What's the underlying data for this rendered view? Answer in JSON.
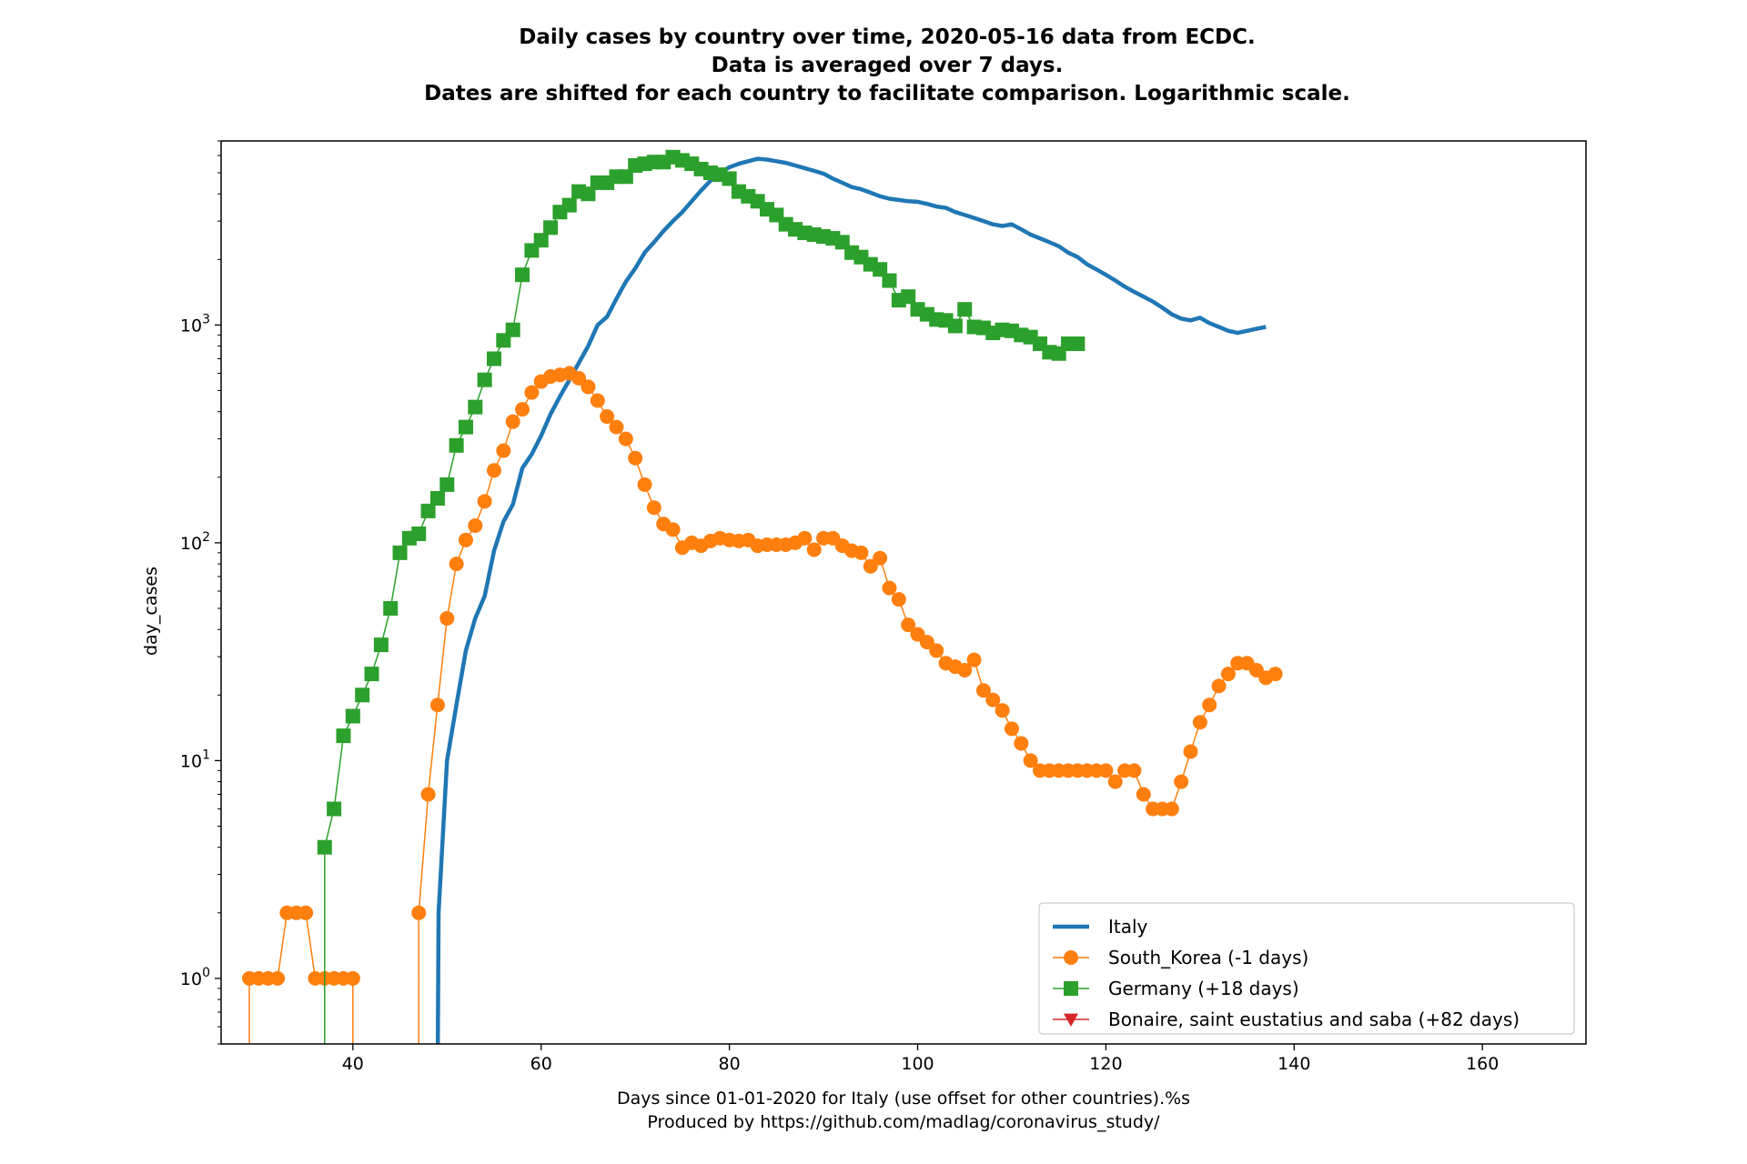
{
  "chart_data": {
    "type": "line",
    "title_lines": [
      "Daily cases by country over time, 2020-05-16 data from ECDC.",
      "Data is averaged over 7 days.",
      "Dates are shifted for each country to facilitate comparison. Logarithmic scale."
    ],
    "xlabel_lines": [
      "Days since 01-01-2020 for Italy (use offset for other countries).%s",
      "Produced by https://github.com/madlag/coronavirus_study/"
    ],
    "ylabel": "day_cases",
    "x_scale": "linear",
    "y_scale": "log",
    "xlim": [
      26,
      171
    ],
    "ylim": [
      0.5,
      7000
    ],
    "x_ticks": [
      40,
      60,
      80,
      100,
      120,
      140,
      160
    ],
    "y_ticks": [
      {
        "value": 1,
        "base": "10",
        "exp": "0"
      },
      {
        "value": 10,
        "base": "10",
        "exp": "1"
      },
      {
        "value": 100,
        "base": "10",
        "exp": "2"
      },
      {
        "value": 1000,
        "base": "10",
        "exp": "3"
      }
    ],
    "grid": false,
    "legend_position": "lower-right",
    "series": [
      {
        "name": "Italy",
        "color": "#1f77b4",
        "marker": "none",
        "line_width": 4.5,
        "points": [
          [
            49,
            0.3
          ],
          [
            49.1,
            2
          ],
          [
            50,
            10
          ],
          [
            51,
            18
          ],
          [
            52,
            32
          ],
          [
            53,
            45
          ],
          [
            54,
            57
          ],
          [
            55,
            92
          ],
          [
            56,
            125
          ],
          [
            57,
            150
          ],
          [
            58,
            220
          ],
          [
            59,
            255
          ],
          [
            60,
            310
          ],
          [
            61,
            390
          ],
          [
            62,
            470
          ],
          [
            63,
            560
          ],
          [
            64,
            670
          ],
          [
            65,
            800
          ],
          [
            66,
            1000
          ],
          [
            67,
            1090
          ],
          [
            68,
            1320
          ],
          [
            69,
            1580
          ],
          [
            70,
            1820
          ],
          [
            71,
            2150
          ],
          [
            72,
            2400
          ],
          [
            73,
            2700
          ],
          [
            74,
            3000
          ],
          [
            75,
            3300
          ],
          [
            76,
            3700
          ],
          [
            77,
            4150
          ],
          [
            78,
            4600
          ],
          [
            79,
            5000
          ],
          [
            80,
            5300
          ],
          [
            81,
            5500
          ],
          [
            82,
            5650
          ],
          [
            83,
            5800
          ],
          [
            84,
            5750
          ],
          [
            85,
            5650
          ],
          [
            86,
            5550
          ],
          [
            87,
            5400
          ],
          [
            88,
            5250
          ],
          [
            89,
            5100
          ],
          [
            90,
            4950
          ],
          [
            91,
            4700
          ],
          [
            92,
            4500
          ],
          [
            93,
            4300
          ],
          [
            94,
            4200
          ],
          [
            95,
            4050
          ],
          [
            96,
            3900
          ],
          [
            97,
            3800
          ],
          [
            98,
            3750
          ],
          [
            99,
            3700
          ],
          [
            100,
            3680
          ],
          [
            101,
            3600
          ],
          [
            102,
            3500
          ],
          [
            103,
            3450
          ],
          [
            104,
            3300
          ],
          [
            105,
            3200
          ],
          [
            106,
            3100
          ],
          [
            107,
            3000
          ],
          [
            108,
            2900
          ],
          [
            109,
            2850
          ],
          [
            110,
            2900
          ],
          [
            111,
            2750
          ],
          [
            112,
            2600
          ],
          [
            113,
            2500
          ],
          [
            114,
            2400
          ],
          [
            115,
            2300
          ],
          [
            116,
            2150
          ],
          [
            117,
            2050
          ],
          [
            118,
            1900
          ],
          [
            119,
            1800
          ],
          [
            120,
            1700
          ],
          [
            121,
            1600
          ],
          [
            122,
            1500
          ],
          [
            123,
            1420
          ],
          [
            124,
            1350
          ],
          [
            125,
            1280
          ],
          [
            126,
            1200
          ],
          [
            127,
            1120
          ],
          [
            128,
            1070
          ],
          [
            129,
            1050
          ],
          [
            130,
            1080
          ],
          [
            131,
            1020
          ],
          [
            132,
            980
          ],
          [
            133,
            940
          ],
          [
            134,
            920
          ],
          [
            135,
            940
          ],
          [
            136,
            960
          ],
          [
            137,
            980
          ]
        ]
      },
      {
        "name": "South_Korea (-1 days)",
        "color": "#ff7f0e",
        "marker": "circle",
        "line_width": 1.5,
        "points": [
          [
            29,
            0.4
          ],
          [
            29,
            1
          ],
          [
            30,
            1
          ],
          [
            31,
            1
          ],
          [
            32,
            1
          ],
          [
            33,
            2
          ],
          [
            34,
            2
          ],
          [
            35,
            2
          ],
          [
            36,
            1
          ],
          [
            37,
            1
          ],
          [
            38,
            1
          ],
          [
            39,
            1
          ],
          [
            40,
            1
          ],
          [
            40,
            0.4
          ],
          [
            47,
            0.4
          ],
          [
            47,
            2
          ],
          [
            48,
            7
          ],
          [
            49,
            18
          ],
          [
            50,
            45
          ],
          [
            51,
            80
          ],
          [
            52,
            103
          ],
          [
            53,
            120
          ],
          [
            54,
            155
          ],
          [
            55,
            215
          ],
          [
            56,
            265
          ],
          [
            57,
            360
          ],
          [
            58,
            410
          ],
          [
            59,
            490
          ],
          [
            60,
            550
          ],
          [
            61,
            580
          ],
          [
            62,
            590
          ],
          [
            63,
            600
          ],
          [
            64,
            570
          ],
          [
            65,
            520
          ],
          [
            66,
            450
          ],
          [
            67,
            380
          ],
          [
            68,
            340
          ],
          [
            69,
            300
          ],
          [
            70,
            245
          ],
          [
            71,
            185
          ],
          [
            72,
            145
          ],
          [
            73,
            122
          ],
          [
            74,
            115
          ],
          [
            75,
            95
          ],
          [
            76,
            100
          ],
          [
            77,
            97
          ],
          [
            78,
            102
          ],
          [
            79,
            105
          ],
          [
            80,
            103
          ],
          [
            81,
            102
          ],
          [
            82,
            103
          ],
          [
            83,
            97
          ],
          [
            84,
            98
          ],
          [
            85,
            98
          ],
          [
            86,
            98
          ],
          [
            87,
            100
          ],
          [
            88,
            105
          ],
          [
            89,
            93
          ],
          [
            90,
            105
          ],
          [
            91,
            105
          ],
          [
            92,
            97
          ],
          [
            93,
            92
          ],
          [
            94,
            90
          ],
          [
            95,
            78
          ],
          [
            96,
            85
          ],
          [
            97,
            62
          ],
          [
            98,
            55
          ],
          [
            99,
            42
          ],
          [
            100,
            38
          ],
          [
            101,
            35
          ],
          [
            102,
            32
          ],
          [
            103,
            28
          ],
          [
            104,
            27
          ],
          [
            105,
            26
          ],
          [
            106,
            29
          ],
          [
            107,
            21
          ],
          [
            108,
            19
          ],
          [
            109,
            17
          ],
          [
            110,
            14
          ],
          [
            111,
            12
          ],
          [
            112,
            10
          ],
          [
            113,
            9
          ],
          [
            114,
            9
          ],
          [
            115,
            9
          ],
          [
            116,
            9
          ],
          [
            117,
            9
          ],
          [
            118,
            9
          ],
          [
            119,
            9
          ],
          [
            120,
            9
          ],
          [
            121,
            8
          ],
          [
            122,
            9
          ],
          [
            123,
            9
          ],
          [
            124,
            7
          ],
          [
            125,
            6
          ],
          [
            126,
            6
          ],
          [
            127,
            6
          ],
          [
            128,
            8
          ],
          [
            129,
            11
          ],
          [
            130,
            15
          ],
          [
            131,
            18
          ],
          [
            132,
            22
          ],
          [
            133,
            25
          ],
          [
            134,
            28
          ],
          [
            135,
            28
          ],
          [
            136,
            26
          ],
          [
            137,
            24
          ],
          [
            138,
            25
          ]
        ]
      },
      {
        "name": "Germany (+18 days)",
        "color": "#2ca02c",
        "marker": "square",
        "line_width": 1.5,
        "points": [
          [
            37,
            0.4
          ],
          [
            37,
            4
          ],
          [
            38,
            6
          ],
          [
            39,
            13
          ],
          [
            40,
            16
          ],
          [
            41,
            20
          ],
          [
            42,
            25
          ],
          [
            43,
            34
          ],
          [
            44,
            50
          ],
          [
            45,
            90
          ],
          [
            46,
            105
          ],
          [
            47,
            110
          ],
          [
            48,
            140
          ],
          [
            49,
            160
          ],
          [
            50,
            185
          ],
          [
            51,
            280
          ],
          [
            52,
            340
          ],
          [
            53,
            420
          ],
          [
            54,
            560
          ],
          [
            55,
            700
          ],
          [
            56,
            850
          ],
          [
            57,
            950
          ],
          [
            58,
            1700
          ],
          [
            59,
            2200
          ],
          [
            60,
            2450
          ],
          [
            61,
            2800
          ],
          [
            62,
            3300
          ],
          [
            63,
            3550
          ],
          [
            64,
            4100
          ],
          [
            65,
            4000
          ],
          [
            66,
            4500
          ],
          [
            67,
            4500
          ],
          [
            68,
            4800
          ],
          [
            69,
            4800
          ],
          [
            70,
            5400
          ],
          [
            71,
            5500
          ],
          [
            72,
            5600
          ],
          [
            73,
            5600
          ],
          [
            74,
            5900
          ],
          [
            75,
            5700
          ],
          [
            76,
            5500
          ],
          [
            77,
            5200
          ],
          [
            78,
            5000
          ],
          [
            79,
            4900
          ],
          [
            80,
            4700
          ],
          [
            81,
            4100
          ],
          [
            82,
            3900
          ],
          [
            83,
            3700
          ],
          [
            84,
            3400
          ],
          [
            85,
            3200
          ],
          [
            86,
            2900
          ],
          [
            87,
            2750
          ],
          [
            88,
            2650
          ],
          [
            89,
            2600
          ],
          [
            90,
            2550
          ],
          [
            91,
            2500
          ],
          [
            92,
            2400
          ],
          [
            93,
            2150
          ],
          [
            94,
            2050
          ],
          [
            95,
            1900
          ],
          [
            96,
            1800
          ],
          [
            97,
            1600
          ],
          [
            98,
            1300
          ],
          [
            99,
            1350
          ],
          [
            100,
            1180
          ],
          [
            101,
            1120
          ],
          [
            102,
            1060
          ],
          [
            103,
            1050
          ],
          [
            104,
            990
          ],
          [
            105,
            1180
          ],
          [
            106,
            980
          ],
          [
            107,
            970
          ],
          [
            108,
            920
          ],
          [
            109,
            950
          ],
          [
            110,
            940
          ],
          [
            111,
            900
          ],
          [
            112,
            880
          ],
          [
            113,
            820
          ],
          [
            114,
            750
          ],
          [
            115,
            740
          ],
          [
            116,
            820
          ],
          [
            117,
            820
          ]
        ]
      },
      {
        "name": "Bonaire, saint eustatius and saba (+82 days)",
        "color": "#d62728",
        "marker": "triangle-down",
        "line_width": 1.5,
        "points": []
      }
    ]
  }
}
